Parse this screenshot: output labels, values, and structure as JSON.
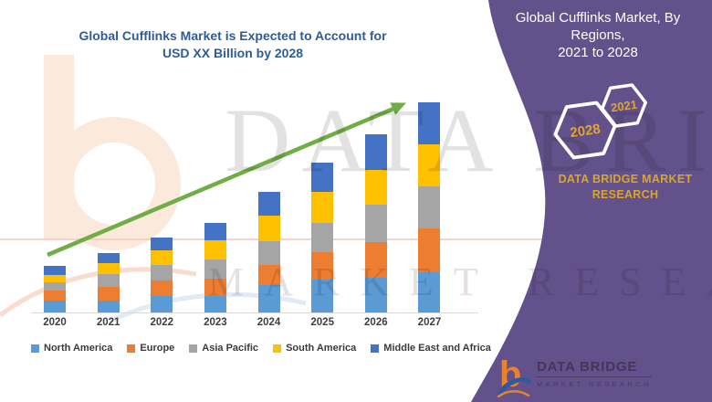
{
  "title": {
    "line1": "Global Cufflinks Market is Expected to Account for",
    "line2": "USD XX Billion by 2028"
  },
  "side_panel": {
    "background": "#63518b",
    "heading_line1": "Global Cufflinks Market, By Regions,",
    "heading_line2": "2021 to 2028",
    "hexagons": [
      {
        "label": "2028"
      },
      {
        "label": "2021"
      }
    ],
    "hexagon_text_color": "#e2a62e",
    "brand_line1": "DATA BRIDGE MARKET",
    "brand_line2": "RESEARCH"
  },
  "logo": {
    "letter": "b",
    "name_line": "DATA BRIDGE",
    "sub_line": "MARKET RESEARCH",
    "orange": "#e8822f",
    "blue": "#2f5b9e"
  },
  "watermark": {
    "row1": "DATA BRIDGE",
    "row2": "MARKET RESEARCH"
  },
  "chart_data": {
    "type": "bar",
    "stacked": true,
    "title": "Global Cufflinks Market is Expected to Account for USD XX Billion by 2028",
    "categories": [
      "2020",
      "2021",
      "2022",
      "2023",
      "2024",
      "2025",
      "2026",
      "2027"
    ],
    "series": [
      {
        "name": "North America",
        "color": "#5B9BD5",
        "values": [
          13,
          13,
          18,
          18,
          30,
          36,
          38,
          44
        ]
      },
      {
        "name": "Europe",
        "color": "#ED7D31",
        "values": [
          11,
          15,
          17,
          19,
          22,
          30,
          39,
          48
        ]
      },
      {
        "name": "Asia Pacific",
        "color": "#A5A5A5",
        "values": [
          9,
          14,
          17,
          21,
          26,
          32,
          41,
          46
        ]
      },
      {
        "name": "South America",
        "color": "#FFC000",
        "values": [
          8,
          12,
          16,
          21,
          28,
          34,
          38,
          46
        ]
      },
      {
        "name": "Middle East and Africa",
        "color": "#4472C4",
        "values": [
          10,
          11,
          14,
          19,
          26,
          32,
          39,
          46
        ]
      }
    ],
    "totals": [
      51,
      65,
      82,
      98,
      132,
      164,
      195,
      230
    ],
    "units": "relative units (market value shown as USD XX Billion; segment sizes estimated from bar heights)",
    "ylim": [
      0,
      235
    ],
    "grid": false,
    "legend_position": "bottom",
    "trend_arrow": {
      "show": true,
      "color": "#70AD47"
    }
  }
}
